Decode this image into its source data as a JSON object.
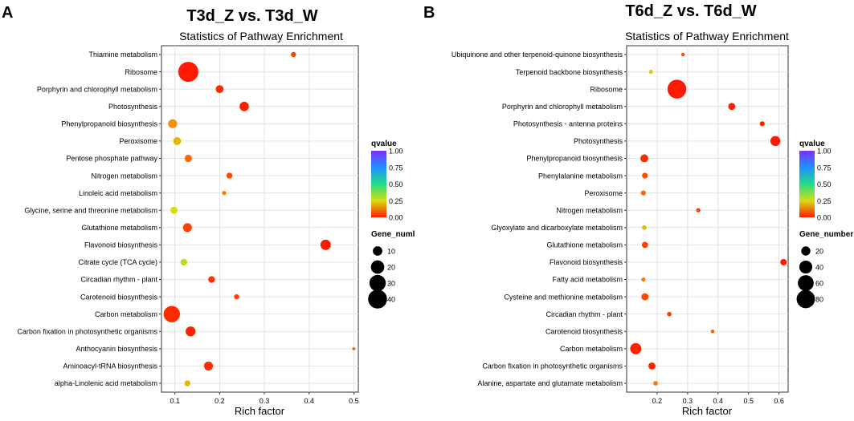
{
  "chart_data": [
    {
      "type": "scatter",
      "panel_letter": "A",
      "title": "T3d_Z vs. T3d_W",
      "subtitle": "Statistics of Pathway Enrichment",
      "xlabel": "Rich factor",
      "ylabel": "",
      "xlim": [
        0.07,
        0.51
      ],
      "xticks": [
        0.1,
        0.2,
        0.3,
        0.4,
        0.5
      ],
      "xtick_labels": [
        "0.1",
        "0.2",
        "0.3",
        "0.4",
        "0.5"
      ],
      "grid": true,
      "color_legend": {
        "title": "qvalue",
        "ticks": [
          "1.00",
          "0.75",
          "0.50",
          "0.25",
          "0.00"
        ]
      },
      "size_legend": {
        "title": "Gene_numl",
        "values": [
          10,
          20,
          30,
          40
        ]
      },
      "points": [
        {
          "pathway": "Thiamine metabolism",
          "rich_factor": 0.365,
          "gene_number": 3,
          "qvalue": 0.05
        },
        {
          "pathway": "Ribosome",
          "rich_factor": 0.13,
          "gene_number": 45,
          "qvalue": 0.0
        },
        {
          "pathway": "Porphyrin and chlorophyll metabolism",
          "rich_factor": 0.2,
          "gene_number": 7,
          "qvalue": 0.02
        },
        {
          "pathway": "Photosynthesis",
          "rich_factor": 0.255,
          "gene_number": 10,
          "qvalue": 0.01
        },
        {
          "pathway": "Phenylpropanoid biosynthesis",
          "rich_factor": 0.095,
          "gene_number": 9,
          "qvalue": 0.15
        },
        {
          "pathway": "Peroxisome",
          "rich_factor": 0.105,
          "gene_number": 7,
          "qvalue": 0.2
        },
        {
          "pathway": "Pentose phosphate pathway",
          "rich_factor": 0.13,
          "gene_number": 6,
          "qvalue": 0.1
        },
        {
          "pathway": "Nitrogen metabolism",
          "rich_factor": 0.222,
          "gene_number": 4,
          "qvalue": 0.06
        },
        {
          "pathway": "Linoleic acid metabolism",
          "rich_factor": 0.21,
          "gene_number": 2,
          "qvalue": 0.12
        },
        {
          "pathway": "Glycine, serine and threonine metabolism",
          "rich_factor": 0.098,
          "gene_number": 6,
          "qvalue": 0.25
        },
        {
          "pathway": "Glutathione metabolism",
          "rich_factor": 0.128,
          "gene_number": 9,
          "qvalue": 0.05
        },
        {
          "pathway": "Flavonoid biosynthesis",
          "rich_factor": 0.437,
          "gene_number": 12,
          "qvalue": 0.0
        },
        {
          "pathway": "Citrate cycle (TCA cycle)",
          "rich_factor": 0.12,
          "gene_number": 5,
          "qvalue": 0.3
        },
        {
          "pathway": "Circadian rhythm - plant",
          "rich_factor": 0.182,
          "gene_number": 5,
          "qvalue": 0.03
        },
        {
          "pathway": "Carotenoid biosynthesis",
          "rich_factor": 0.238,
          "gene_number": 3,
          "qvalue": 0.05
        },
        {
          "pathway": "Carbon metabolism",
          "rich_factor": 0.093,
          "gene_number": 30,
          "qvalue": 0.02
        },
        {
          "pathway": "Carbon fixation in photosynthetic organisms",
          "rich_factor": 0.135,
          "gene_number": 11,
          "qvalue": 0.01
        },
        {
          "pathway": "Anthocyanin biosynthesis",
          "rich_factor": 0.5,
          "gene_number": 1,
          "qvalue": 0.08
        },
        {
          "pathway": "Aminoacyl-tRNA biosynthesis",
          "rich_factor": 0.175,
          "gene_number": 9,
          "qvalue": 0.02
        },
        {
          "pathway": "alpha-Linolenic acid metabolism",
          "rich_factor": 0.128,
          "gene_number": 4,
          "qvalue": 0.2
        }
      ]
    },
    {
      "type": "scatter",
      "panel_letter": "B",
      "title": "T6d_Z vs. T6d_W",
      "subtitle": "Statistics of Pathway Enrichment",
      "xlabel": "Rich factor",
      "ylabel": "",
      "xlim": [
        0.1,
        0.63
      ],
      "xticks": [
        0.2,
        0.3,
        0.4,
        0.5,
        0.6
      ],
      "xtick_labels": [
        "0.2",
        "0.3",
        "0.4",
        "0.5",
        "0.6"
      ],
      "grid": true,
      "color_legend": {
        "title": "qvalue",
        "ticks": [
          "1.00",
          "0.75",
          "0.50",
          "0.25",
          "0.00"
        ]
      },
      "size_legend": {
        "title": "Gene_number",
        "values": [
          20,
          40,
          60,
          80
        ]
      },
      "points": [
        {
          "pathway": "Ubiquinone and other terpenoid-quinone biosynthesis",
          "rich_factor": 0.285,
          "gene_number": 3,
          "qvalue": 0.06
        },
        {
          "pathway": "Terpenoid backbone biosynthesis",
          "rich_factor": 0.18,
          "gene_number": 4,
          "qvalue": 0.22
        },
        {
          "pathway": "Ribosome",
          "rich_factor": 0.265,
          "gene_number": 85,
          "qvalue": 0.0
        },
        {
          "pathway": "Porphyrin and chlorophyll metabolism",
          "rich_factor": 0.445,
          "gene_number": 12,
          "qvalue": 0.01
        },
        {
          "pathway": "Photosynthesis - antenna proteins",
          "rich_factor": 0.545,
          "gene_number": 6,
          "qvalue": 0.01
        },
        {
          "pathway": "Photosynthesis",
          "rich_factor": 0.588,
          "gene_number": 24,
          "qvalue": 0.0
        },
        {
          "pathway": "Phenylpropanoid biosynthesis",
          "rich_factor": 0.158,
          "gene_number": 15,
          "qvalue": 0.02
        },
        {
          "pathway": "Phenylalanine metabolism",
          "rich_factor": 0.16,
          "gene_number": 8,
          "qvalue": 0.06
        },
        {
          "pathway": "Peroxisome",
          "rich_factor": 0.155,
          "gene_number": 6,
          "qvalue": 0.1
        },
        {
          "pathway": "Nitrogen metabolism",
          "rich_factor": 0.335,
          "gene_number": 4,
          "qvalue": 0.03
        },
        {
          "pathway": "Glyoxylate and dicarboxylate metabolism",
          "rich_factor": 0.158,
          "gene_number": 5,
          "qvalue": 0.2
        },
        {
          "pathway": "Glutathione metabolism",
          "rich_factor": 0.16,
          "gene_number": 9,
          "qvalue": 0.05
        },
        {
          "pathway": "Flavonoid biosynthesis",
          "rich_factor": 0.615,
          "gene_number": 10,
          "qvalue": 0.0
        },
        {
          "pathway": "Fatty acid metabolism",
          "rich_factor": 0.155,
          "gene_number": 4,
          "qvalue": 0.12
        },
        {
          "pathway": "Cysteine and methionine metabolism",
          "rich_factor": 0.16,
          "gene_number": 12,
          "qvalue": 0.06
        },
        {
          "pathway": "Circadian rhythm - plant",
          "rich_factor": 0.24,
          "gene_number": 5,
          "qvalue": 0.05
        },
        {
          "pathway": "Carotenoid biosynthesis",
          "rich_factor": 0.382,
          "gene_number": 3,
          "qvalue": 0.08
        },
        {
          "pathway": "Carbon metabolism",
          "rich_factor": 0.13,
          "gene_number": 30,
          "qvalue": 0.01
        },
        {
          "pathway": "Carbon fixation in photosynthetic organisms",
          "rich_factor": 0.183,
          "gene_number": 12,
          "qvalue": 0.01
        },
        {
          "pathway": "Alanine, aspartate and glutamate metabolism",
          "rich_factor": 0.195,
          "gene_number": 5,
          "qvalue": 0.12
        }
      ]
    }
  ]
}
